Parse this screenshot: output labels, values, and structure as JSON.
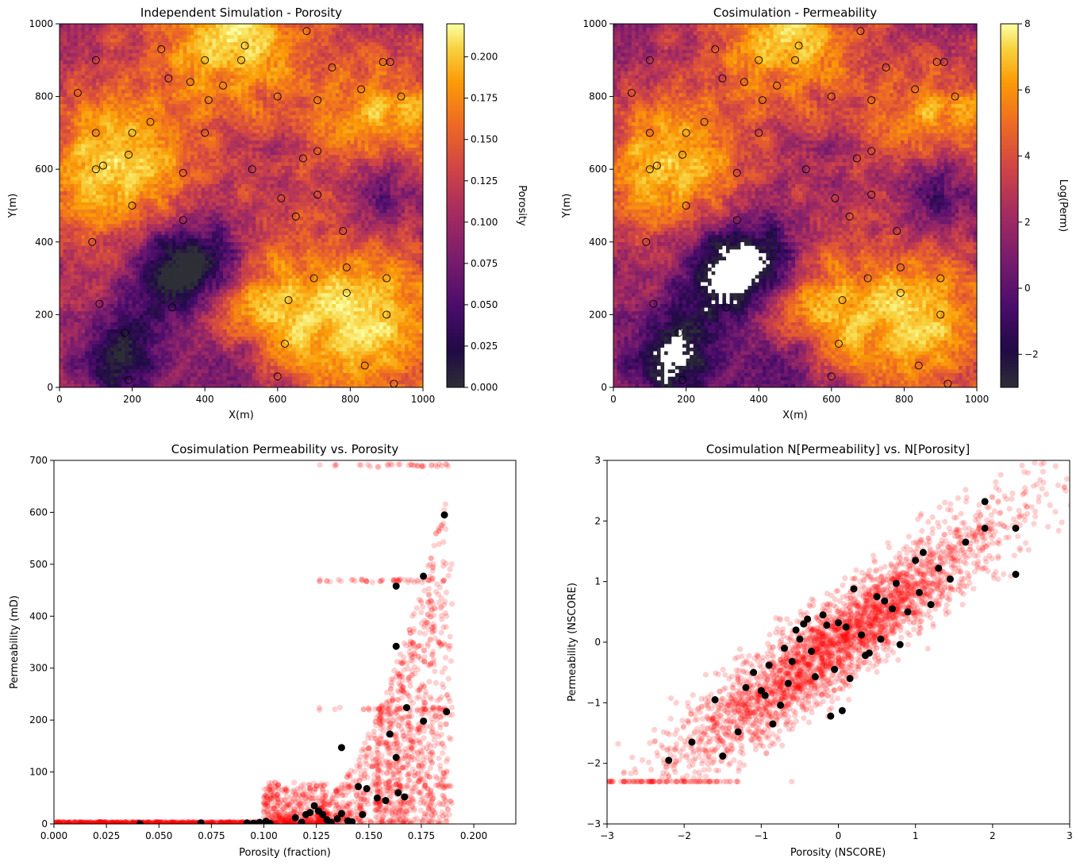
{
  "figure": {
    "panels": [
      {
        "id": "poro-map",
        "title": "Independent Simulation - Porosity",
        "xlabel": "X(m)",
        "ylabel": "Y(m)",
        "xlim": [
          0,
          1000
        ],
        "ylim": [
          0,
          1000
        ],
        "xticks": [
          "0",
          "200",
          "400",
          "600",
          "800",
          "1000"
        ],
        "yticks": [
          "0",
          "200",
          "400",
          "600",
          "800",
          "1000"
        ],
        "colorbar": {
          "label": "Porosity",
          "range": [
            0.0,
            0.22
          ],
          "ticks": [
            "0.000",
            "0.025",
            "0.050",
            "0.075",
            "0.100",
            "0.125",
            "0.150",
            "0.175",
            "0.200"
          ],
          "colormap": "inferno"
        }
      },
      {
        "id": "perm-map",
        "title": "Cosimulation - Permeability",
        "xlabel": "X(m)",
        "ylabel": "Y(m)",
        "xlim": [
          0,
          1000
        ],
        "ylim": [
          0,
          1000
        ],
        "xticks": [
          "0",
          "200",
          "400",
          "600",
          "800",
          "1000"
        ],
        "yticks": [
          "0",
          "200",
          "400",
          "600",
          "800",
          "1000"
        ],
        "colorbar": {
          "label": "Log(Perm)",
          "range": [
            -3,
            8
          ],
          "ticks": [
            "−2",
            "0",
            "2",
            "4",
            "6",
            "8"
          ],
          "colormap": "inferno"
        }
      },
      {
        "id": "perm-vs-poro",
        "title": "Cosimulation Permeability vs. Porosity",
        "xlabel": "Porosity (fraction)",
        "ylabel": "Permeability (mD)",
        "xticks": [
          "0.000",
          "0.025",
          "0.050",
          "0.075",
          "0.100",
          "0.125",
          "0.150",
          "0.175",
          "0.200"
        ],
        "yticks": [
          "0",
          "100",
          "200",
          "300",
          "400",
          "500",
          "600",
          "700"
        ]
      },
      {
        "id": "nscore-scatter",
        "title": "Cosimulation N[Permeability] vs. N[Porosity]",
        "xlabel": "Porosity (NSCORE)",
        "ylabel": "Permeability (NSCORE)",
        "xticks": [
          "−3",
          "−2",
          "−1",
          "0",
          "1",
          "2",
          "3"
        ],
        "yticks": [
          "−3",
          "−2",
          "−1",
          "0",
          "1",
          "2",
          "3"
        ]
      }
    ],
    "colors": {
      "cloud": "#ff0000",
      "wells": "#000000",
      "well_ring": "#000000"
    }
  },
  "chart_data": [
    {
      "type": "heatmap",
      "title": "Independent Simulation - Porosity",
      "xlabel": "X(m)",
      "ylabel": "Y(m)",
      "xlim": [
        0,
        1000
      ],
      "ylim": [
        0,
        1000
      ],
      "grid": false,
      "colorbar_label": "Porosity",
      "value_range": [
        0.0,
        0.22
      ],
      "grid_cells": [
        100,
        100
      ],
      "high_regions_xy": [
        [
          480,
          980
        ],
        [
          150,
          610
        ],
        [
          910,
          680
        ],
        [
          480,
          180
        ],
        [
          830,
          180
        ]
      ],
      "low_regions_xy": [
        [
          400,
          340
        ],
        [
          300,
          290
        ],
        [
          180,
          80
        ],
        [
          460,
          60
        ],
        [
          900,
          560
        ]
      ],
      "wells_xy": [
        [
          100,
          900
        ],
        [
          280,
          930
        ],
        [
          400,
          900
        ],
        [
          500,
          900
        ],
        [
          510,
          940
        ],
        [
          680,
          980
        ],
        [
          750,
          880
        ],
        [
          890,
          895
        ],
        [
          910,
          895
        ],
        [
          50,
          810
        ],
        [
          300,
          850
        ],
        [
          360,
          840
        ],
        [
          450,
          830
        ],
        [
          410,
          790
        ],
        [
          600,
          800
        ],
        [
          710,
          790
        ],
        [
          830,
          820
        ],
        [
          940,
          800
        ],
        [
          100,
          700
        ],
        [
          200,
          700
        ],
        [
          250,
          730
        ],
        [
          400,
          700
        ],
        [
          190,
          640
        ],
        [
          100,
          600
        ],
        [
          120,
          610
        ],
        [
          340,
          590
        ],
        [
          530,
          600
        ],
        [
          670,
          630
        ],
        [
          710,
          650
        ],
        [
          610,
          520
        ],
        [
          710,
          530
        ],
        [
          200,
          500
        ],
        [
          340,
          460
        ],
        [
          650,
          470
        ],
        [
          90,
          400
        ],
        [
          780,
          430
        ],
        [
          790,
          330
        ],
        [
          700,
          300
        ],
        [
          900,
          300
        ],
        [
          110,
          230
        ],
        [
          310,
          220
        ],
        [
          630,
          240
        ],
        [
          790,
          260
        ],
        [
          900,
          200
        ],
        [
          180,
          150
        ],
        [
          620,
          120
        ],
        [
          190,
          20
        ],
        [
          600,
          30
        ],
        [
          840,
          60
        ],
        [
          920,
          10
        ]
      ]
    },
    {
      "type": "heatmap",
      "title": "Cosimulation - Permeability",
      "xlabel": "X(m)",
      "ylabel": "Y(m)",
      "xlim": [
        0,
        1000
      ],
      "ylim": [
        0,
        1000
      ],
      "grid": false,
      "colorbar_label": "Log(Perm)",
      "value_range": [
        -3,
        8
      ],
      "grid_cells": [
        100,
        100
      ],
      "note_white_cells": "undefined (log of zero) in low-porosity zones",
      "wells_xy": "same as porosity map"
    },
    {
      "type": "scatter",
      "title": "Cosimulation Permeability vs. Porosity",
      "xlabel": "Porosity (fraction)",
      "ylabel": "Permeability (mD)",
      "xlim": [
        0.0,
        0.22
      ],
      "ylim": [
        0,
        700
      ],
      "series": [
        {
          "name": "Wells",
          "x": [
            0.041,
            0.07,
            0.092,
            0.095,
            0.098,
            0.101,
            0.103,
            0.115,
            0.118,
            0.12,
            0.122,
            0.124,
            0.126,
            0.128,
            0.13,
            0.132,
            0.135,
            0.137,
            0.14,
            0.142,
            0.145,
            0.147,
            0.149,
            0.154,
            0.158,
            0.16,
            0.163,
            0.163,
            0.163,
            0.164,
            0.167,
            0.168,
            0.176,
            0.176,
            0.187,
            0.186,
            0.137
          ],
          "y": [
            0,
            2,
            2,
            1,
            3,
            5,
            1,
            12,
            3,
            18,
            22,
            35,
            25,
            18,
            8,
            3,
            10,
            20,
            6,
            4,
            72,
            18,
            68,
            50,
            45,
            173,
            128,
            342,
            458,
            60,
            52,
            224,
            198,
            477,
            216,
            595,
            147
          ]
        }
      ],
      "cloud_description": "about 5000 simulated cells; permeability near 0 below porosity 0.10, rising steeply above 0.12; vertical bands near 0.155-0.175",
      "cloud_style": "red semi-transparent points"
    },
    {
      "type": "scatter",
      "title": "Cosimulation N[Permeability] vs. N[Porosity]",
      "xlabel": "Porosity (NSCORE)",
      "ylabel": "Permeability (NSCORE)",
      "xlim": [
        -3,
        3
      ],
      "ylim": [
        -3,
        3
      ],
      "series": [
        {
          "name": "Wells",
          "x": [
            -2.2,
            -1.9,
            -1.6,
            -1.5,
            -1.3,
            -1.2,
            -1.1,
            -1.0,
            -0.95,
            -0.9,
            -0.85,
            -0.75,
            -0.7,
            -0.65,
            -0.6,
            -0.55,
            -0.5,
            -0.45,
            -0.4,
            -0.35,
            -0.3,
            -0.2,
            -0.15,
            -0.1,
            -0.05,
            0.0,
            0.05,
            0.1,
            0.15,
            0.2,
            0.3,
            0.35,
            0.4,
            0.5,
            0.55,
            0.6,
            0.7,
            0.75,
            0.8,
            0.9,
            1.0,
            1.05,
            1.1,
            1.2,
            1.3,
            1.45,
            1.65,
            1.9,
            2.3
          ],
          "y": [
            -1.95,
            -1.65,
            -0.95,
            -1.88,
            -1.48,
            -0.75,
            -0.5,
            -0.8,
            -0.88,
            -0.38,
            -1.35,
            -1.04,
            -0.1,
            -0.68,
            -0.32,
            0.2,
            0.05,
            0.3,
            0.38,
            -0.15,
            -0.57,
            0.45,
            0.28,
            -1.22,
            -0.45,
            0.32,
            -1.13,
            0.25,
            -0.6,
            0.88,
            0.12,
            -0.22,
            -0.18,
            0.75,
            0.05,
            0.68,
            0.55,
            0.97,
            -0.04,
            0.5,
            1.35,
            0.82,
            1.48,
            0.62,
            1.22,
            1.04,
            1.65,
            2.32,
            1.88
          ],
          "x_extra": [
            1.9,
            2.3
          ],
          "y_extra": [
            1.88,
            1.12
          ]
        }
      ],
      "cloud_description": "about 5000 simulated cells, strong positive linear correlation about slope 1; truncated row at y = -2.3 for x from -3 to -1.3",
      "cloud_style": "red semi-transparent points"
    }
  ]
}
